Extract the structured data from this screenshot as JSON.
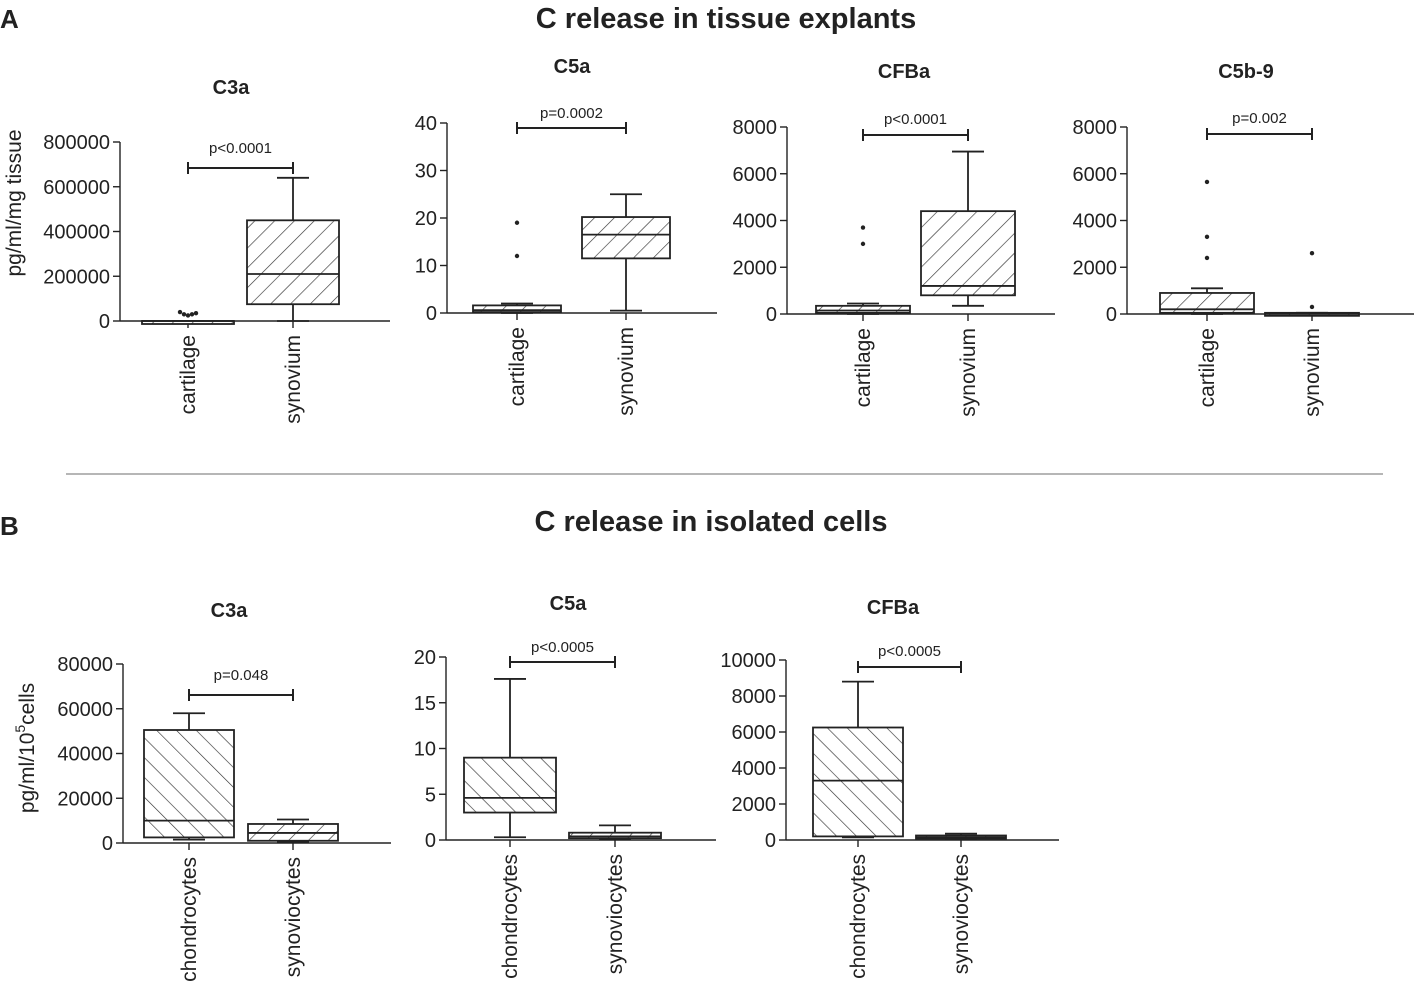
{
  "panels": [
    {
      "letter": "A",
      "title": "C release in tissue explants",
      "ylabel": "pg/ml/mg tissue"
    },
    {
      "letter": "B",
      "title": "C release in isolated cells",
      "ylabel_main": "pg/ml/10",
      "ylabel_sup": "5",
      "ylabel_tail": "cells"
    }
  ],
  "colors": {
    "ink": "#222222",
    "divider": "#8a8a8a",
    "box_fill": "#ffffff"
  },
  "chart_data": [
    {
      "type": "box",
      "panel": "A",
      "title": "C3a",
      "categories": [
        "cartilage",
        "synovium"
      ],
      "ylim": [
        0,
        800000
      ],
      "yticks": [
        0,
        200000,
        400000,
        600000,
        800000
      ],
      "ylabel": "pg/ml/mg tissue",
      "pvalue": "p<0.0001",
      "series": [
        {
          "name": "cartilage",
          "min": 0,
          "q1": 0,
          "median": 0,
          "q3": 0,
          "max": 0,
          "outliers": [
            40000,
            30000,
            25000,
            30000,
            35000
          ],
          "hatch": "desc"
        },
        {
          "name": "synovium",
          "min": 0,
          "q1": 75000,
          "median": 210000,
          "q3": 450000,
          "max": 640000,
          "outliers": [],
          "hatch": "desc"
        }
      ]
    },
    {
      "type": "box",
      "panel": "A",
      "title": "C5a",
      "categories": [
        "cartilage",
        "synovium"
      ],
      "ylim": [
        0,
        40
      ],
      "yticks": [
        0,
        10,
        20,
        30,
        40
      ],
      "ylabel": "",
      "pvalue": "p=0.0002",
      "series": [
        {
          "name": "cartilage",
          "min": 0,
          "q1": 0.2,
          "median": 0.6,
          "q3": 1.6,
          "max": 2.0,
          "outliers": [
            12,
            19
          ],
          "hatch": "desc"
        },
        {
          "name": "synovium",
          "min": 0.5,
          "q1": 11.5,
          "median": 16.5,
          "q3": 20.2,
          "max": 25,
          "outliers": [],
          "hatch": "desc"
        }
      ]
    },
    {
      "type": "box",
      "panel": "A",
      "title": "CFBa",
      "categories": [
        "cartilage",
        "synovium"
      ],
      "ylim": [
        0,
        8000
      ],
      "yticks": [
        0,
        2000,
        4000,
        6000,
        8000
      ],
      "ylabel": "",
      "pvalue": "p<0.0001",
      "series": [
        {
          "name": "cartilage",
          "min": 0,
          "q1": 50,
          "median": 150,
          "q3": 350,
          "max": 450,
          "outliers": [
            3000,
            3700
          ],
          "hatch": "desc"
        },
        {
          "name": "synovium",
          "min": 350,
          "q1": 800,
          "median": 1200,
          "q3": 4400,
          "max": 6950,
          "outliers": [],
          "hatch": "desc"
        }
      ]
    },
    {
      "type": "box",
      "panel": "A",
      "title": "C5b-9",
      "categories": [
        "cartilage",
        "synovium"
      ],
      "ylim": [
        0,
        8000
      ],
      "yticks": [
        0,
        2000,
        4000,
        6000,
        8000
      ],
      "ylabel": "",
      "pvalue": "p=0.002",
      "series": [
        {
          "name": "cartilage",
          "min": 0,
          "q1": 50,
          "median": 200,
          "q3": 900,
          "max": 1100,
          "outliers": [
            2400,
            3300,
            5650
          ],
          "hatch": "desc"
        },
        {
          "name": "synovium",
          "min": 0,
          "q1": 0,
          "median": 0,
          "q3": 50,
          "max": 50,
          "outliers": [
            300,
            2600
          ],
          "hatch": "desc"
        }
      ]
    },
    {
      "type": "box",
      "panel": "B",
      "title": "C3a",
      "categories": [
        "chondrocytes",
        "synoviocytes"
      ],
      "ylim": [
        0,
        80000
      ],
      "yticks": [
        0,
        20000,
        40000,
        60000,
        80000
      ],
      "ylabel": "pg/ml/10^5cells",
      "pvalue": "p=0.048",
      "series": [
        {
          "name": "chondrocytes",
          "min": 1500,
          "q1": 2500,
          "median": 10000,
          "q3": 50500,
          "max": 58000,
          "outliers": [],
          "hatch": "asc"
        },
        {
          "name": "synoviocytes",
          "min": 500,
          "q1": 1000,
          "median": 4500,
          "q3": 8500,
          "max": 10500,
          "outliers": [],
          "hatch": "desc"
        }
      ]
    },
    {
      "type": "box",
      "panel": "B",
      "title": "C5a",
      "categories": [
        "chondrocytes",
        "synoviocytes"
      ],
      "ylim": [
        0,
        20
      ],
      "yticks": [
        0,
        5,
        10,
        15,
        20
      ],
      "ylabel": "",
      "pvalue": "p<0.0005",
      "series": [
        {
          "name": "chondrocytes",
          "min": 0.3,
          "q1": 3.0,
          "median": 4.6,
          "q3": 9.0,
          "max": 17.6,
          "outliers": [],
          "hatch": "asc"
        },
        {
          "name": "synoviocytes",
          "min": 0.1,
          "q1": 0.2,
          "median": 0.4,
          "q3": 0.8,
          "max": 1.6,
          "outliers": [],
          "hatch": "desc"
        }
      ]
    },
    {
      "type": "box",
      "panel": "B",
      "title": "CFBa",
      "categories": [
        "chondrocytes",
        "synoviocytes"
      ],
      "ylim": [
        0,
        10000
      ],
      "yticks": [
        0,
        2000,
        4000,
        6000,
        8000,
        10000
      ],
      "ylabel": "",
      "pvalue": "p<0.0005",
      "series": [
        {
          "name": "chondrocytes",
          "min": 150,
          "q1": 200,
          "median": 3300,
          "q3": 6250,
          "max": 8800,
          "outliers": [],
          "hatch": "asc"
        },
        {
          "name": "synoviocytes",
          "min": 50,
          "q1": 80,
          "median": 150,
          "q3": 250,
          "max": 350,
          "outliers": [],
          "hatch": "desc"
        }
      ]
    }
  ]
}
